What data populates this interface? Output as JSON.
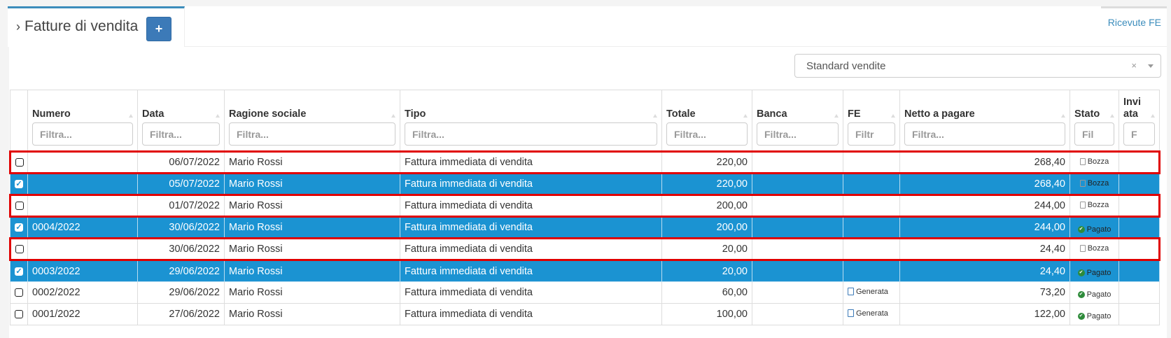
{
  "header": {
    "title": "Fatture di vendita",
    "add_button": "+",
    "right_tab": "Ricevute FE"
  },
  "segment_select": {
    "value": "Standard vendite",
    "clear": "×"
  },
  "colors": {
    "accent": "#3c8dbc",
    "selected_row": "#1b93d2",
    "highlight_outline": "#e00000",
    "paid": "#2e8b3a"
  },
  "table": {
    "columns": [
      {
        "label": "Numero",
        "filter": "Filtra..."
      },
      {
        "label": "Data",
        "filter": "Filtra..."
      },
      {
        "label": "Ragione sociale",
        "filter": "Filtra..."
      },
      {
        "label": "Tipo",
        "filter": "Filtra..."
      },
      {
        "label": "Totale",
        "filter": "Filtra..."
      },
      {
        "label": "Banca",
        "filter": "Filtra..."
      },
      {
        "label": "FE",
        "filter": "Filtr"
      },
      {
        "label": "Netto a pagare",
        "filter": "Filtra..."
      },
      {
        "label": "Stato",
        "filter": "Fil"
      },
      {
        "label": "Invi ata",
        "filter": "F"
      }
    ],
    "rows": [
      {
        "selected": false,
        "highlighted": true,
        "numero": "",
        "data": "06/07/2022",
        "ragione": "Mario Rossi",
        "tipo": "Fattura immediata di vendita",
        "totale": "220,00",
        "banca": "",
        "fe": "",
        "netto": "268,40",
        "stato": "Bozza",
        "stato_icon": "file-icon"
      },
      {
        "selected": true,
        "highlighted": false,
        "numero": "",
        "data": "05/07/2022",
        "ragione": "Mario Rossi",
        "tipo": "Fattura immediata di vendita",
        "totale": "220,00",
        "banca": "",
        "fe": "",
        "netto": "268,40",
        "stato": "Bozza",
        "stato_icon": "file-icon"
      },
      {
        "selected": false,
        "highlighted": true,
        "numero": "",
        "data": "01/07/2022",
        "ragione": "Mario Rossi",
        "tipo": "Fattura immediata di vendita",
        "totale": "200,00",
        "banca": "",
        "fe": "",
        "netto": "244,00",
        "stato": "Bozza",
        "stato_icon": "file-icon"
      },
      {
        "selected": true,
        "highlighted": false,
        "numero": "0004/2022",
        "data": "30/06/2022",
        "ragione": "Mario Rossi",
        "tipo": "Fattura immediata di vendita",
        "totale": "200,00",
        "banca": "",
        "fe": "",
        "netto": "244,00",
        "stato": "Pagato",
        "stato_icon": "check-circle-icon"
      },
      {
        "selected": false,
        "highlighted": true,
        "numero": "",
        "data": "30/06/2022",
        "ragione": "Mario Rossi",
        "tipo": "Fattura immediata di vendita",
        "totale": "20,00",
        "banca": "",
        "fe": "",
        "netto": "24,40",
        "stato": "Bozza",
        "stato_icon": "file-icon"
      },
      {
        "selected": true,
        "highlighted": false,
        "numero": "0003/2022",
        "data": "29/06/2022",
        "ragione": "Mario Rossi",
        "tipo": "Fattura immediata di vendita",
        "totale": "20,00",
        "banca": "",
        "fe": "",
        "netto": "24,40",
        "stato": "Pagato",
        "stato_icon": "check-circle-icon"
      },
      {
        "selected": false,
        "highlighted": false,
        "numero": "0002/2022",
        "data": "29/06/2022",
        "ragione": "Mario Rossi",
        "tipo": "Fattura immediata di vendita",
        "totale": "60,00",
        "banca": "",
        "fe": "Generata",
        "netto": "73,20",
        "stato": "Pagato",
        "stato_icon": "check-circle-icon"
      },
      {
        "selected": false,
        "highlighted": false,
        "numero": "0001/2022",
        "data": "27/06/2022",
        "ragione": "Mario Rossi",
        "tipo": "Fattura immediata di vendita",
        "totale": "100,00",
        "banca": "",
        "fe": "Generata",
        "netto": "122,00",
        "stato": "Pagato",
        "stato_icon": "check-circle-icon"
      }
    ]
  }
}
